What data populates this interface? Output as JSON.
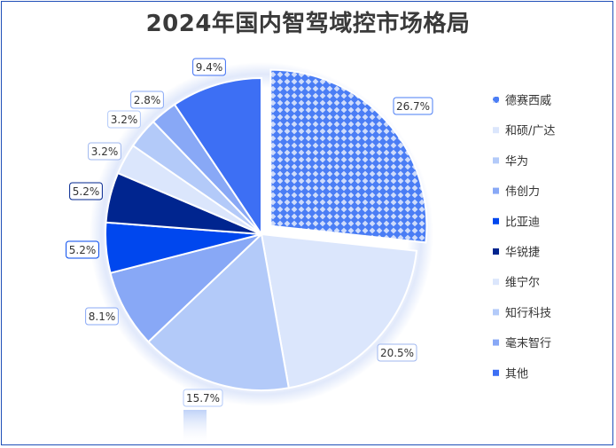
{
  "chart_data": {
    "type": "pie",
    "title": "2024年国内智驾域控市场格局",
    "legend_position": "right",
    "categories": [
      "德赛西威",
      "和硕/广达",
      "华为",
      "伟创力",
      "比亚迪",
      "华锐捷",
      "维宁尔",
      "知行科技",
      "毫末智行",
      "其他"
    ],
    "values": [
      26.7,
      20.5,
      15.7,
      8.1,
      5.2,
      5.2,
      3.2,
      3.2,
      2.8,
      9.4
    ],
    "labels": [
      "26.7%",
      "20.5%",
      "15.7%",
      "8.1%",
      "5.2%",
      "5.2%",
      "3.2%",
      "3.2%",
      "2.8%",
      "9.4%"
    ],
    "colors": [
      "#4a7df5",
      "#dbe6fc",
      "#b3caf9",
      "#88a8f6",
      "#0047ee",
      "#00258f",
      "#dbe6fc",
      "#b3caf9",
      "#88a8f6",
      "#3d6ff4"
    ],
    "exploded": "德赛西威",
    "patterned": "德赛西威"
  }
}
